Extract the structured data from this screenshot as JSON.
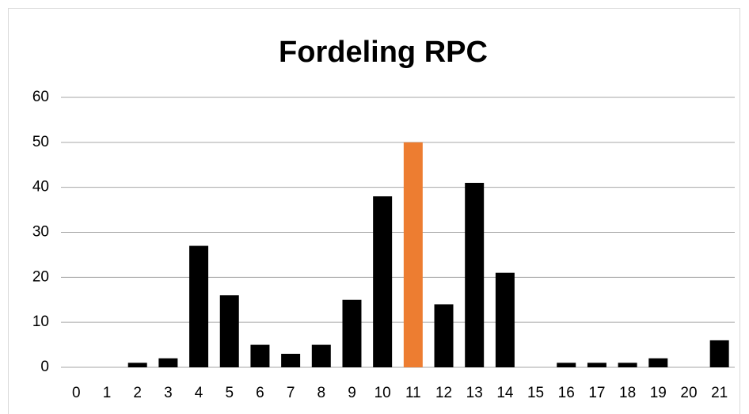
{
  "chart_data": {
    "type": "bar",
    "title": "Fordeling RPC",
    "categories": [
      "0",
      "1",
      "2",
      "3",
      "4",
      "5",
      "6",
      "7",
      "8",
      "9",
      "10",
      "11",
      "12",
      "13",
      "14",
      "15",
      "16",
      "17",
      "18",
      "19",
      "20",
      "21"
    ],
    "values": [
      0,
      0,
      1,
      2,
      27,
      16,
      5,
      3,
      5,
      15,
      38,
      50,
      14,
      41,
      21,
      0,
      1,
      1,
      1,
      2,
      0,
      6
    ],
    "colors": [
      "#000000",
      "#000000",
      "#000000",
      "#000000",
      "#000000",
      "#000000",
      "#000000",
      "#000000",
      "#000000",
      "#000000",
      "#000000",
      "#ed7d31",
      "#000000",
      "#000000",
      "#000000",
      "#000000",
      "#000000",
      "#000000",
      "#000000",
      "#000000",
      "#000000",
      "#000000"
    ],
    "ylim": [
      0,
      60
    ],
    "yticks": [
      0,
      10,
      20,
      30,
      40,
      50,
      60
    ],
    "grid": true
  }
}
